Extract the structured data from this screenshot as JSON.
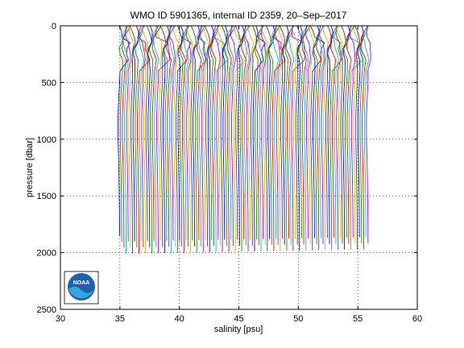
{
  "chart_data": {
    "type": "line",
    "title": "WMO ID 5901365, internal ID 2359, 20–Sep–2017",
    "xlabel": "salinity [psu]",
    "ylabel": "pressure [dbar]",
    "xlim": [
      30,
      60
    ],
    "ylim": [
      0,
      2500
    ],
    "y_reversed": true,
    "grid": true,
    "legend": "none",
    "x_ticks": [
      "30",
      "35",
      "40",
      "45",
      "50",
      "55",
      "60"
    ],
    "y_ticks": [
      "0",
      "500",
      "1000",
      "1500",
      "2000",
      "2500"
    ],
    "series_count": 117,
    "series_spacing_psu": 0.18,
    "first_series_offset_psu": 0.3,
    "base_profile": {
      "pressure": [
        0,
        50,
        100,
        150,
        200,
        250,
        300,
        400,
        500,
        600,
        800,
        1000,
        1200,
        1500,
        1700,
        1900,
        1980
      ],
      "salinity": [
        34.8,
        34.75,
        34.7,
        34.6,
        34.5,
        34.55,
        34.65,
        34.7,
        34.68,
        34.62,
        34.55,
        34.55,
        34.6,
        34.65,
        34.67,
        34.68,
        34.68
      ]
    },
    "line_colors": [
      "#0000ff",
      "#00a000",
      "#ff0000",
      "#00bfbf",
      "#bf00bf",
      "#bfbf00",
      "#404040"
    ],
    "logo": "NOAA"
  }
}
